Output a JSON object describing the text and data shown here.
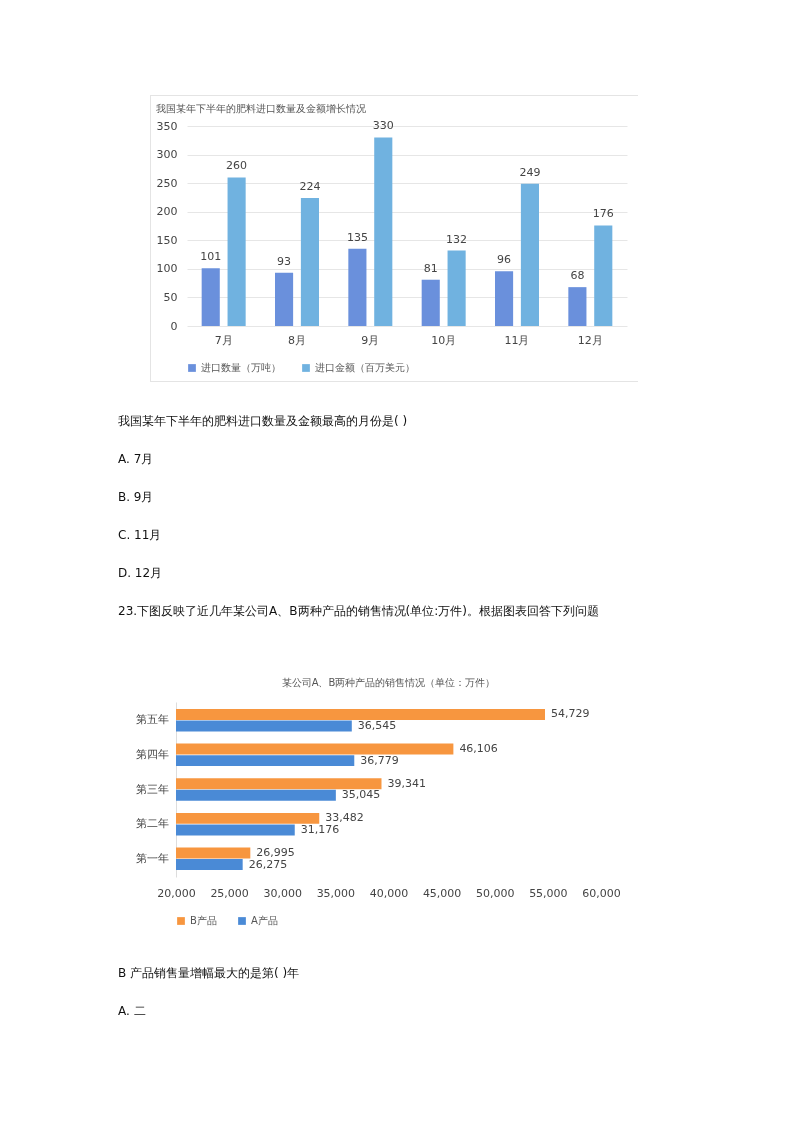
{
  "chart_data": [
    {
      "type": "bar",
      "title": "我国某年下半年的肥料进口数量及金额增长情况",
      "categories": [
        "7月",
        "8月",
        "9月",
        "10月",
        "11月",
        "12月"
      ],
      "series": [
        {
          "name": "进口数量（万吨）",
          "color": "#6a90dc",
          "values": [
            101,
            93,
            135,
            81,
            96,
            68
          ]
        },
        {
          "name": "进口金额（百万美元）",
          "color": "#70b2e0",
          "values": [
            260,
            224,
            330,
            132,
            249,
            176
          ]
        }
      ],
      "ylim": [
        0,
        350
      ],
      "yticks": [
        0,
        50,
        100,
        150,
        200,
        250,
        300,
        350
      ],
      "grid": "y",
      "legend": "bottom",
      "data_labels": true,
      "annotations": [
        "我国某年下半年的肥料进口数量及金额最高的月份是(    )",
        "A.  7月",
        "B.  9月",
        "C.  11月",
        "D.  12月",
        "23.下图反映了近几年某公司A、B两种产品的销售情况(单位:万件)。根据图表回答下列问题"
      ]
    },
    {
      "type": "bar",
      "orientation": "horizontal",
      "title": "某公司A、B两种产品的销售情况（单位：万件）",
      "categories": [
        "第五年",
        "第四年",
        "第三年",
        "第二年",
        "第一年"
      ],
      "series": [
        {
          "name": "B产品",
          "color": "#f7963f",
          "values": [
            54729,
            46106,
            39341,
            33482,
            26995
          ],
          "value_labels": [
            "54,729",
            "46,106",
            "39,341",
            "33,482",
            "26,995"
          ]
        },
        {
          "name": "A产品",
          "color": "#4a8ad6",
          "values": [
            36545,
            36779,
            35045,
            31176,
            26275
          ],
          "value_labels": [
            "36,545",
            "36,779",
            "35,045",
            "31,176",
            "26,275"
          ]
        }
      ],
      "xlim": [
        20000,
        60000
      ],
      "xticks": [
        {
          "value": 20000,
          "label": "20,000"
        },
        {
          "value": 25000,
          "label": "25,000"
        },
        {
          "value": 30000,
          "label": "30,000"
        },
        {
          "value": 35000,
          "label": "35,000"
        },
        {
          "value": 40000,
          "label": "40,000"
        },
        {
          "value": 45000,
          "label": "45,000"
        },
        {
          "value": 50000,
          "label": "50,000"
        },
        {
          "value": 55000,
          "label": "55,000"
        },
        {
          "value": 60000,
          "label": "60,000"
        }
      ],
      "grid": false,
      "legend": "bottom",
      "annotations": [
        "B 产品销售量增幅最大的是第(    )年",
        "A.  二"
      ]
    }
  ]
}
